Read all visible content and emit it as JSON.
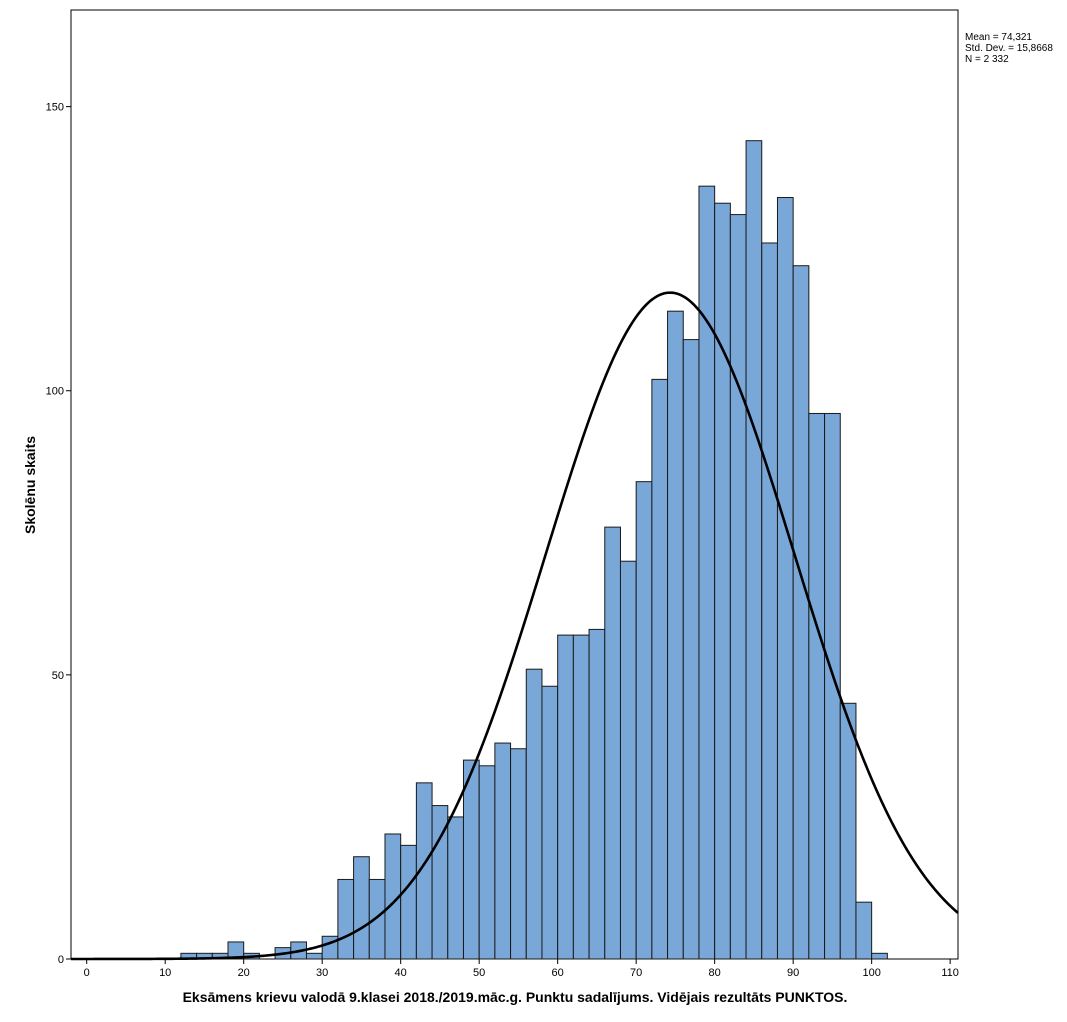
{
  "chart_data": {
    "type": "bar",
    "subtype": "histogram",
    "xlabel": "Eksāmens krievu valodā 9.klasei 2018./2019.māc.g. Punktu sadalījums. Vidējais rezultāts PUNKTOS.",
    "ylabel": "Skolēnu skaits",
    "xlim": [
      -2,
      111
    ],
    "ylim": [
      0,
      167
    ],
    "xticks": [
      0,
      10,
      20,
      30,
      40,
      50,
      60,
      70,
      80,
      90,
      100,
      110
    ],
    "yticks": [
      0,
      50,
      100,
      150
    ],
    "bin_width": 2,
    "bin_starts": [
      12,
      14,
      16,
      18,
      20,
      22,
      24,
      26,
      28,
      30,
      32,
      34,
      36,
      38,
      40,
      42,
      44,
      46,
      48,
      50,
      52,
      54,
      56,
      58,
      60,
      62,
      64,
      66,
      68,
      70,
      72,
      74,
      76,
      78,
      80,
      82,
      84,
      86,
      88,
      90,
      92,
      94,
      96,
      98,
      100
    ],
    "values": [
      1,
      1,
      1,
      3,
      1,
      0,
      2,
      3,
      1,
      4,
      14,
      18,
      14,
      22,
      20,
      31,
      27,
      25,
      35,
      34,
      38,
      37,
      51,
      48,
      57,
      57,
      58,
      76,
      70,
      84,
      102,
      114,
      109,
      136,
      133,
      131,
      144,
      126,
      134,
      122,
      96,
      96,
      45,
      10,
      1
    ],
    "bar_color": "#79a7d8",
    "bar_edge_color": "#1a1a1a",
    "curve": {
      "type": "normal",
      "mean": 74.321,
      "std": 15.8668,
      "n": 2332,
      "color": "#000000"
    },
    "grid": false,
    "legend": "none"
  },
  "stats": {
    "mean_line": "Mean = 74,321",
    "std_line": "Std. Dev. = 15,8668",
    "n_line": "N = 2 332"
  }
}
